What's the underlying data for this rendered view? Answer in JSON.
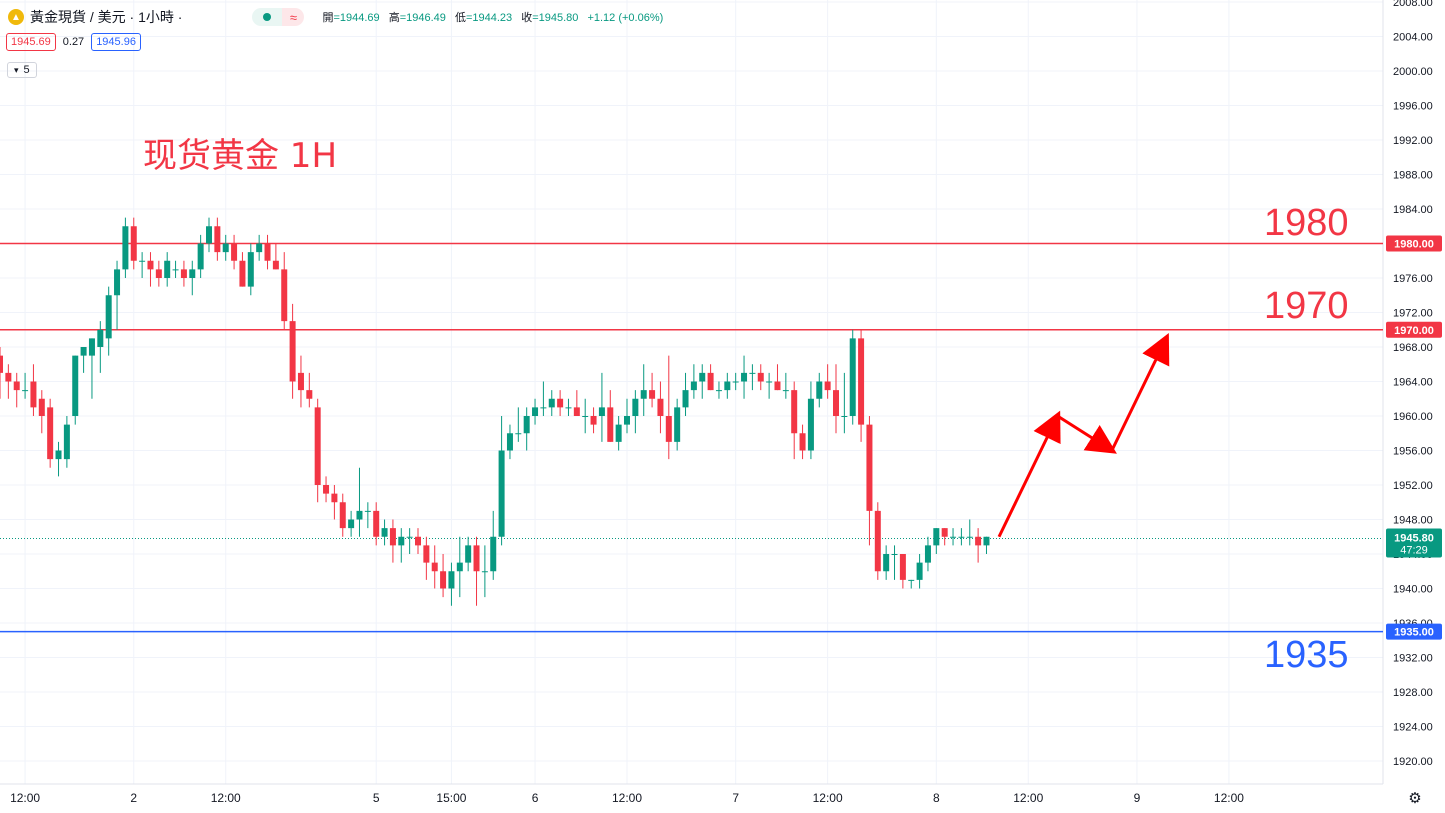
{
  "header": {
    "symbol_title": "黃金現貨 / 美元 · 1小時 ·",
    "ohlc": {
      "open_label": "開",
      "open": "=1944.69",
      "high_label": "高",
      "high": "=1946.49",
      "low_label": "低",
      "low": "=1944.23",
      "close_label": "收",
      "close": "=1945.80",
      "change": "+1.12 (+0.06%)"
    },
    "bid": "1945.69",
    "spread": "0.27",
    "ask": "1945.96",
    "indicator_count": "5",
    "wave_icon": "≈"
  },
  "annotation_title": "现货黄金 1H",
  "colors": {
    "up": "#089981",
    "down": "#f23645",
    "resistance": "#f23645",
    "support": "#2962ff",
    "grid": "#f0f3fa",
    "axis_text": "#131722",
    "current_line": "#089981"
  },
  "chart_data": {
    "type": "candlestick",
    "title": "现货黄金 1H",
    "y_range": [
      1917,
      2009
    ],
    "y_ticks": [
      "2008.00",
      "2004.00",
      "2000.00",
      "1996.00",
      "1992.00",
      "1988.00",
      "1984.00",
      "1980.00",
      "1976.00",
      "1972.00",
      "1968.00",
      "1964.00",
      "1960.00",
      "1956.00",
      "1952.00",
      "1948.00",
      "1944.00",
      "1940.00",
      "1936.00",
      "1932.00",
      "1928.00",
      "1924.00",
      "1920.00"
    ],
    "x_ticks": [
      {
        "label": "12:00",
        "bar": 3
      },
      {
        "label": "2",
        "bar": 16
      },
      {
        "label": "12:00",
        "bar": 27
      },
      {
        "label": "5",
        "bar": 45
      },
      {
        "label": "15:00",
        "bar": 54
      },
      {
        "label": "6",
        "bar": 64
      },
      {
        "label": "12:00",
        "bar": 75
      },
      {
        "label": "7",
        "bar": 88
      },
      {
        "label": "12:00",
        "bar": 99
      },
      {
        "label": "8",
        "bar": 112
      },
      {
        "label": "12:00",
        "bar": 123
      },
      {
        "label": "9",
        "bar": 136
      },
      {
        "label": "12:00",
        "bar": 147
      }
    ],
    "candles": [
      [
        1967,
        1968,
        1962,
        1965
      ],
      [
        1965,
        1966,
        1962,
        1964
      ],
      [
        1964,
        1965,
        1961,
        1963
      ],
      [
        1963,
        1965,
        1962,
        1963
      ],
      [
        1964,
        1966,
        1960,
        1961
      ],
      [
        1962,
        1963,
        1958,
        1960
      ],
      [
        1961,
        1962,
        1954,
        1955
      ],
      [
        1955,
        1957,
        1953,
        1956
      ],
      [
        1955,
        1960,
        1954,
        1959
      ],
      [
        1960,
        1967,
        1959,
        1967
      ],
      [
        1967,
        1968,
        1965,
        1968
      ],
      [
        1967,
        1969,
        1962,
        1969
      ],
      [
        1968,
        1971,
        1965,
        1970
      ],
      [
        1969,
        1975,
        1967,
        1974
      ],
      [
        1974,
        1978,
        1970,
        1977
      ],
      [
        1977,
        1983,
        1976,
        1982
      ],
      [
        1982,
        1983,
        1977,
        1978
      ],
      [
        1978,
        1979,
        1976,
        1978
      ],
      [
        1978,
        1979,
        1975,
        1977
      ],
      [
        1977,
        1978,
        1975,
        1976
      ],
      [
        1976,
        1979,
        1975,
        1978
      ],
      [
        1977,
        1978,
        1976,
        1977
      ],
      [
        1977,
        1978,
        1975,
        1976
      ],
      [
        1976,
        1978,
        1974,
        1977
      ],
      [
        1977,
        1981,
        1976,
        1980
      ],
      [
        1980,
        1983,
        1979,
        1982
      ],
      [
        1982,
        1983,
        1978,
        1979
      ],
      [
        1979,
        1981,
        1978,
        1980
      ],
      [
        1980,
        1981,
        1977,
        1978
      ],
      [
        1978,
        1979,
        1975,
        1975
      ],
      [
        1975,
        1980,
        1974,
        1979
      ],
      [
        1979,
        1981,
        1978,
        1980
      ],
      [
        1980,
        1981,
        1977,
        1978
      ],
      [
        1978,
        1980,
        1977,
        1977
      ],
      [
        1977,
        1979,
        1970,
        1971
      ],
      [
        1971,
        1973,
        1962,
        1964
      ],
      [
        1965,
        1967,
        1961,
        1963
      ],
      [
        1963,
        1965,
        1961,
        1962
      ],
      [
        1961,
        1962,
        1950,
        1952
      ],
      [
        1952,
        1953,
        1950,
        1951
      ],
      [
        1951,
        1952,
        1948,
        1950
      ],
      [
        1950,
        1951,
        1946,
        1947
      ],
      [
        1947,
        1949,
        1946,
        1948
      ],
      [
        1948,
        1954,
        1946,
        1949
      ],
      [
        1949,
        1950,
        1947,
        1949
      ],
      [
        1949,
        1950,
        1945,
        1946
      ],
      [
        1946,
        1948,
        1945,
        1947
      ],
      [
        1947,
        1948,
        1943,
        1945
      ],
      [
        1945,
        1947,
        1943,
        1946
      ],
      [
        1946,
        1947,
        1944,
        1946
      ],
      [
        1946,
        1947,
        1944,
        1945
      ],
      [
        1945,
        1946,
        1941,
        1943
      ],
      [
        1943,
        1945,
        1940,
        1942
      ],
      [
        1942,
        1944,
        1939,
        1940
      ],
      [
        1940,
        1943,
        1938,
        1942
      ],
      [
        1942,
        1946,
        1939,
        1943
      ],
      [
        1943,
        1946,
        1942,
        1945
      ],
      [
        1945,
        1946,
        1938,
        1942
      ],
      [
        1942,
        1945,
        1939,
        1942
      ],
      [
        1942,
        1949,
        1941,
        1946
      ],
      [
        1946,
        1960,
        1945,
        1956
      ],
      [
        1956,
        1959,
        1955,
        1958
      ],
      [
        1958,
        1961,
        1957,
        1958
      ],
      [
        1958,
        1961,
        1956,
        1960
      ],
      [
        1960,
        1962,
        1959,
        1961
      ],
      [
        1961,
        1964,
        1960,
        1961
      ],
      [
        1961,
        1963,
        1960,
        1962
      ],
      [
        1962,
        1963,
        1960,
        1961
      ],
      [
        1961,
        1962,
        1960,
        1961
      ],
      [
        1961,
        1963,
        1960,
        1960
      ],
      [
        1960,
        1962,
        1958,
        1960
      ],
      [
        1960,
        1961,
        1958,
        1959
      ],
      [
        1960,
        1965,
        1957,
        1961
      ],
      [
        1961,
        1963,
        1957,
        1957
      ],
      [
        1957,
        1960,
        1956,
        1959
      ],
      [
        1959,
        1962,
        1958,
        1960
      ],
      [
        1960,
        1963,
        1958,
        1962
      ],
      [
        1962,
        1966,
        1960,
        1963
      ],
      [
        1963,
        1965,
        1961,
        1962
      ],
      [
        1962,
        1964,
        1958,
        1960
      ],
      [
        1960,
        1967,
        1955,
        1957
      ],
      [
        1957,
        1962,
        1956,
        1961
      ],
      [
        1961,
        1965,
        1960,
        1963
      ],
      [
        1963,
        1966,
        1962,
        1964
      ],
      [
        1964,
        1966,
        1962,
        1965
      ],
      [
        1965,
        1966,
        1963,
        1963
      ],
      [
        1963,
        1964,
        1962,
        1963
      ],
      [
        1963,
        1965,
        1962,
        1964
      ],
      [
        1964,
        1965,
        1963,
        1964
      ],
      [
        1964,
        1967,
        1962,
        1965
      ],
      [
        1965,
        1966,
        1963,
        1965
      ],
      [
        1965,
        1966,
        1963,
        1964
      ],
      [
        1964,
        1965,
        1962,
        1964
      ],
      [
        1964,
        1966,
        1963,
        1963
      ],
      [
        1963,
        1965,
        1962,
        1963
      ],
      [
        1963,
        1964,
        1955,
        1958
      ],
      [
        1958,
        1959,
        1955,
        1956
      ],
      [
        1956,
        1964,
        1955,
        1962
      ],
      [
        1962,
        1965,
        1961,
        1964
      ],
      [
        1964,
        1966,
        1962,
        1963
      ],
      [
        1963,
        1966,
        1958,
        1960
      ],
      [
        1960,
        1965,
        1958,
        1960
      ],
      [
        1960,
        1970,
        1959,
        1969
      ],
      [
        1969,
        1970,
        1957,
        1959
      ],
      [
        1959,
        1960,
        1945,
        1949
      ],
      [
        1949,
        1950,
        1941,
        1942
      ],
      [
        1942,
        1945,
        1941,
        1944
      ],
      [
        1944,
        1945,
        1941,
        1944
      ],
      [
        1944,
        1944,
        1940,
        1941
      ],
      [
        1941,
        1941,
        1940,
        1941
      ],
      [
        1941,
        1944,
        1940,
        1943
      ],
      [
        1943,
        1946,
        1942,
        1945
      ],
      [
        1945,
        1947,
        1944,
        1947
      ],
      [
        1947,
        1947,
        1945,
        1946
      ],
      [
        1946,
        1947,
        1945,
        1946
      ],
      [
        1946,
        1947,
        1945,
        1946
      ],
      [
        1946,
        1948,
        1945,
        1946
      ],
      [
        1946,
        1947,
        1943,
        1945
      ],
      [
        1945,
        1946,
        1944,
        1946
      ]
    ],
    "current_price": "1945.80",
    "countdown": "47:29",
    "horizontal_lines": [
      {
        "value": 1980,
        "label": "1980",
        "axis_label": "1980.00",
        "color": "#f23645"
      },
      {
        "value": 1970,
        "label": "1970",
        "axis_label": "1970.00",
        "color": "#f23645"
      },
      {
        "value": 1935,
        "label": "1935",
        "axis_label": "1935.00",
        "color": "#2962ff"
      }
    ],
    "projection": {
      "points": [
        [
          1946,
          119.5
        ],
        [
          1960,
          126.5
        ],
        [
          1956,
          133
        ],
        [
          1969,
          139.5
        ]
      ]
    }
  }
}
